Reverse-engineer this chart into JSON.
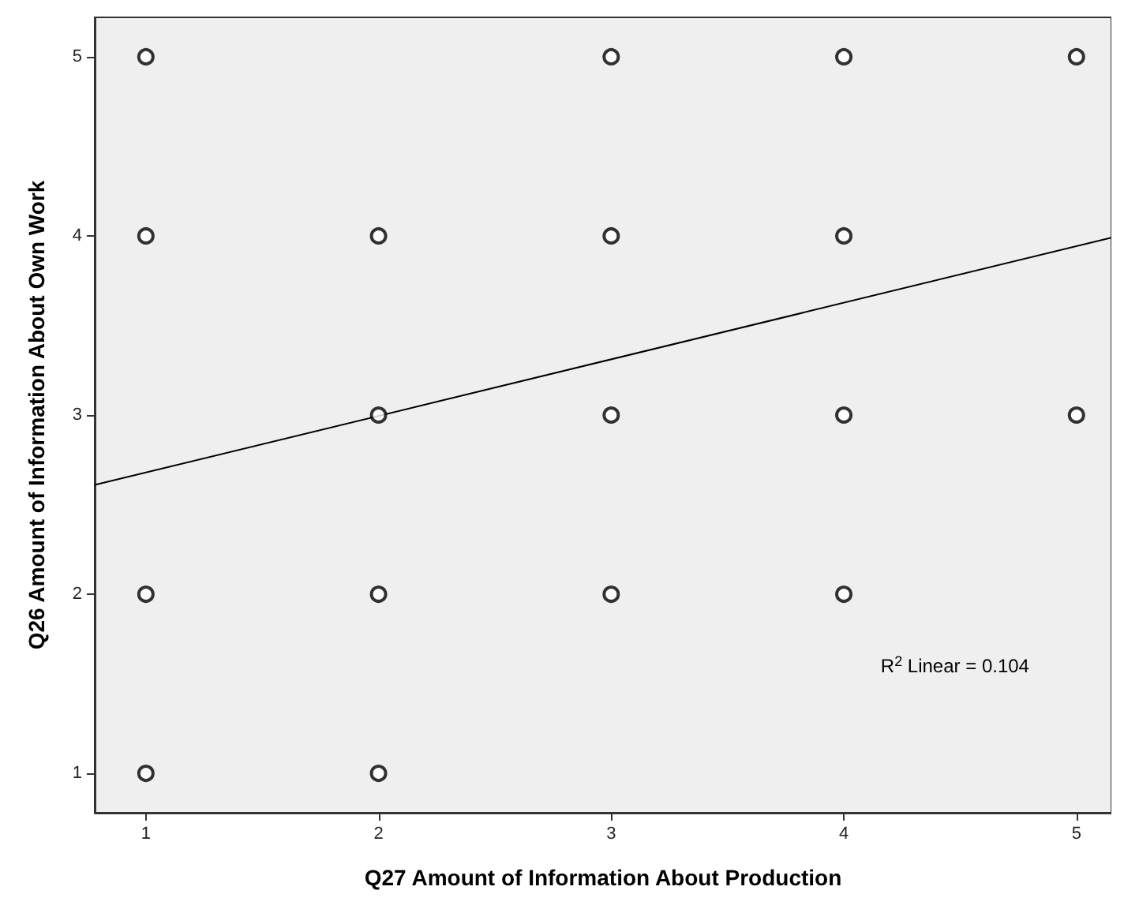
{
  "chart_data": {
    "type": "scatter",
    "xlabel": "Q27 Amount of Information About Production",
    "ylabel": "Q26 Amount of Information About Own Work",
    "x": [
      1,
      1,
      1,
      1,
      2,
      2,
      2,
      2,
      3,
      3,
      3,
      3,
      4,
      4,
      4,
      4,
      5,
      5
    ],
    "series": [
      {
        "color": "#000000",
        "marker": "circle",
        "values": [
          5,
          4,
          2,
          1,
          4,
          3,
          2,
          1,
          5,
          4,
          3,
          2,
          5,
          4,
          3,
          2,
          5,
          3
        ]
      },
      {
        "type": "line",
        "color": "#000000",
        "marker": "none",
        "x": [
          0.78,
          5.15
        ],
        "values": [
          2.61,
          3.99
        ]
      }
    ],
    "xlim": [
      0.78,
      5.15
    ],
    "ylim": [
      0.78,
      5.22
    ],
    "xticks": [
      1,
      2,
      3,
      4,
      5
    ],
    "yticks": [
      1,
      2,
      3,
      4,
      5
    ],
    "grid": false,
    "annotations": [
      "R$^{2}$ Linear = 0.104"
    ]
  }
}
